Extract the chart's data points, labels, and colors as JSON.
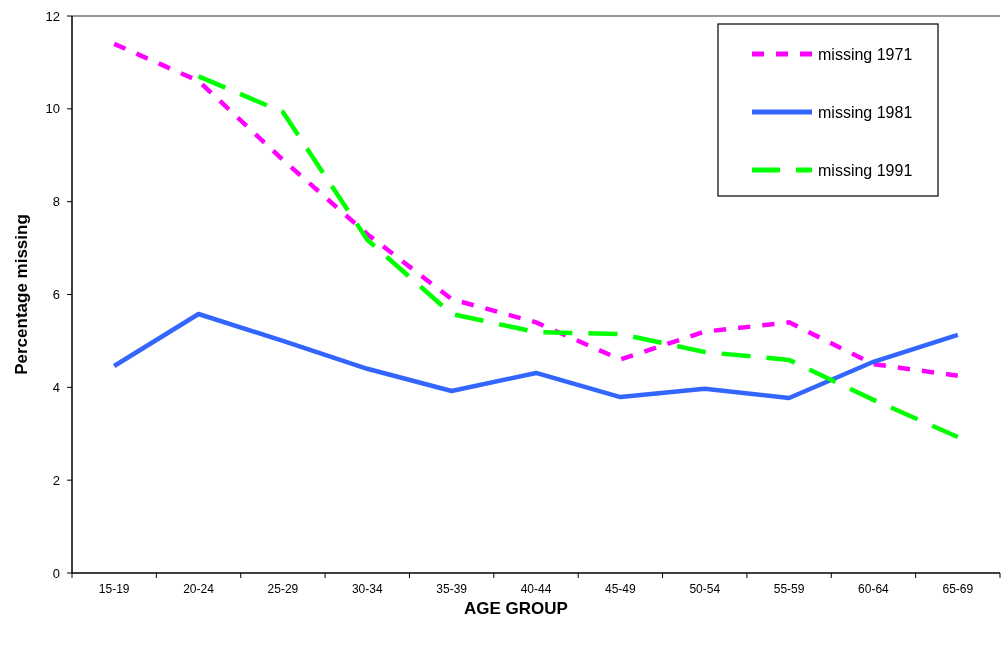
{
  "chart_data": {
    "type": "line",
    "xlabel": "AGE GROUP",
    "ylabel": "Percentage missing",
    "categories": [
      "15-19",
      "20-24",
      "25-29",
      "30-34",
      "35-39",
      "40-44",
      "45-49",
      "50-54",
      "55-59",
      "60-64",
      "65-69"
    ],
    "series": [
      {
        "name": "missing 1971",
        "color": "#ff00ff",
        "line_style": "dotted",
        "values": [
          11.4,
          10.6,
          8.9,
          7.3,
          5.9,
          5.4,
          4.6,
          5.2,
          5.4,
          4.5,
          4.25
        ]
      },
      {
        "name": "missing 1981",
        "color": "#3366ff",
        "line_style": "solid",
        "values": [
          4.46,
          5.58,
          5.0,
          4.4,
          3.92,
          4.31,
          3.79,
          3.97,
          3.77,
          4.55,
          5.13
        ]
      },
      {
        "name": "missing 1991",
        "color": "#00ff00",
        "line_style": "dashed",
        "values": [
          null,
          10.7,
          9.93,
          7.18,
          5.58,
          5.19,
          5.15,
          4.76,
          4.59,
          3.73,
          2.93
        ]
      }
    ],
    "ylim": [
      0,
      12
    ],
    "yticks": [
      0,
      2,
      4,
      6,
      8,
      10,
      12
    ],
    "grid": false,
    "legend": "top right"
  }
}
